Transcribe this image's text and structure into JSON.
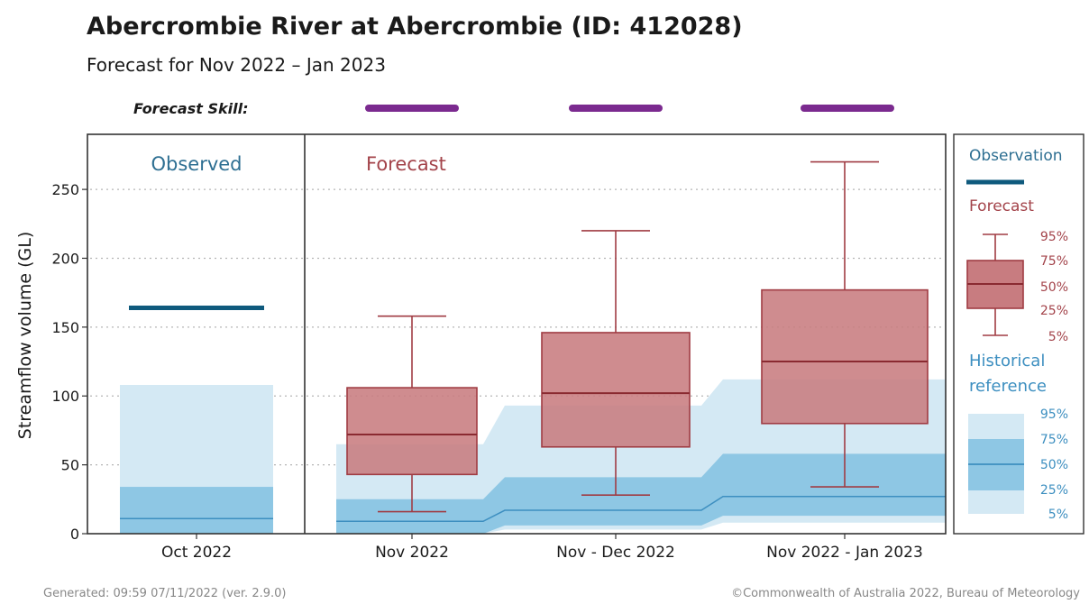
{
  "header": {
    "title": "Abercrombie River at Abercrombie (ID: 412028)",
    "subtitle": "Forecast for Nov 2022 – Jan 2023"
  },
  "footer": {
    "generated": "Generated: 09:59 07/11/2022 (ver. 2.9.0)",
    "copyright": "©Commonwealth of Australia 2022, Bureau of Meteorology"
  },
  "colors": {
    "observation": "#0f5a7d",
    "forecast_box": "#c87c80",
    "forecast_line": "#a03c43",
    "forecast_text": "#a3434a",
    "hist_light": "#d4e9f4",
    "hist_dark": "#8ec7e4",
    "hist_median": "#3d8fc0",
    "observed_text": "#2e6f92",
    "skill_bar": "#7b2a8f"
  },
  "chart_data": {
    "type": "box",
    "ylabel": "Streamflow volume (GL)",
    "ylim": [
      0,
      290
    ],
    "yticks": [
      0,
      50,
      100,
      150,
      200,
      250
    ],
    "grid": true,
    "panel_labels": {
      "observed": "Observed",
      "forecast": "Forecast"
    },
    "forecast_skill_label": "Forecast Skill:",
    "categories": [
      "Oct 2022",
      "Nov 2022",
      "Nov - Dec 2022",
      "Nov 2022 - Jan 2023"
    ],
    "observed": {
      "category": "Oct 2022",
      "value": 164
    },
    "historical_reference": {
      "Oct 2022": {
        "p5": 0,
        "p25": 0,
        "p50": 11,
        "p75": 34,
        "p95": 108
      },
      "Nov 2022": {
        "p5": 0,
        "p25": 0,
        "p50": 9,
        "p75": 25,
        "p95": 65
      },
      "Nov - Dec 2022": {
        "p5": 3,
        "p25": 6,
        "p50": 17,
        "p75": 41,
        "p95": 93
      },
      "Nov 2022 - Jan 2023": {
        "p5": 8,
        "p25": 13,
        "p50": 27,
        "p75": 58,
        "p95": 112
      }
    },
    "forecast": [
      {
        "category": "Nov 2022",
        "p5": 16,
        "p25": 43,
        "p50": 72,
        "p75": 106,
        "p95": 158
      },
      {
        "category": "Nov - Dec 2022",
        "p5": 28,
        "p25": 63,
        "p50": 102,
        "p75": 146,
        "p95": 220
      },
      {
        "category": "Nov 2022 - Jan 2023",
        "p5": 34,
        "p25": 80,
        "p50": 125,
        "p75": 177,
        "p95": 270
      }
    ],
    "legend": {
      "placement": "right",
      "observation": "Observation",
      "forecast": "Forecast",
      "historical": [
        "Historical",
        "reference"
      ],
      "percentiles": [
        "95%",
        "75%",
        "50%",
        "25%",
        "5%"
      ]
    }
  }
}
